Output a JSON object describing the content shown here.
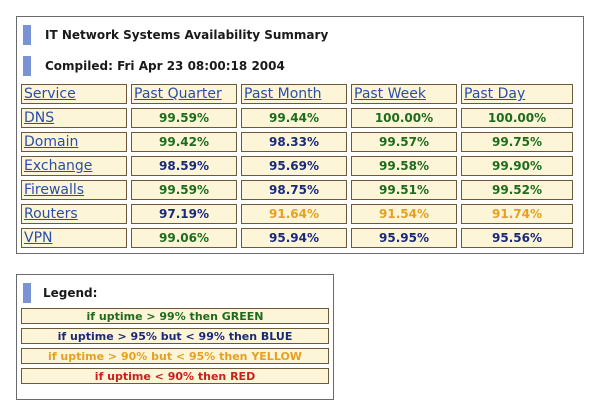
{
  "summary": {
    "title": "IT Network Systems Availability Summary",
    "compiled": "Compiled: Fri Apr 23 08:00:18 2004",
    "columns": [
      "Service",
      "Past Quarter",
      "Past Month",
      "Past Week",
      "Past Day"
    ],
    "rows": [
      {
        "service": "DNS",
        "values": [
          "99.59%",
          "99.44%",
          "100.00%",
          "100.00%"
        ],
        "colors": [
          "#1e6b1e",
          "#1e6b1e",
          "#1e6b1e",
          "#1e6b1e"
        ]
      },
      {
        "service": "Domain",
        "values": [
          "99.42%",
          "98.33%",
          "99.57%",
          "99.75%"
        ],
        "colors": [
          "#1e6b1e",
          "#1a2a7a",
          "#1e6b1e",
          "#1e6b1e"
        ]
      },
      {
        "service": "Exchange",
        "values": [
          "98.59%",
          "95.69%",
          "99.58%",
          "99.90%"
        ],
        "colors": [
          "#1a2a7a",
          "#1a2a7a",
          "#1e6b1e",
          "#1e6b1e"
        ]
      },
      {
        "service": "Firewalls",
        "values": [
          "99.59%",
          "98.75%",
          "99.51%",
          "99.52%"
        ],
        "colors": [
          "#1e6b1e",
          "#1a2a7a",
          "#1e6b1e",
          "#1e6b1e"
        ]
      },
      {
        "service": "Routers",
        "values": [
          "97.19%",
          "91.64%",
          "91.54%",
          "91.74%"
        ],
        "colors": [
          "#1a2a7a",
          "#e6a020",
          "#e6a020",
          "#e6a020"
        ]
      },
      {
        "service": "VPN",
        "values": [
          "99.06%",
          "95.94%",
          "95.95%",
          "95.56%"
        ],
        "colors": [
          "#1e6b1e",
          "#1a2a7a",
          "#1a2a7a",
          "#1a2a7a"
        ]
      }
    ]
  },
  "legend": {
    "title": "Legend:",
    "items": [
      {
        "text": "if uptime > 99% then GREEN",
        "color": "#1e6b1e"
      },
      {
        "text": "if uptime > 95% but < 99% then BLUE",
        "color": "#1a2a7a"
      },
      {
        "text": "if uptime > 90% but < 95% then YELLOW",
        "color": "#e6a020"
      },
      {
        "text": "if uptime < 90% then RED",
        "color": "#c8201a"
      }
    ]
  },
  "colors": {
    "accent": "#7a93d4",
    "cell_bg": "#fdf5d8",
    "link": "#2a4ea8"
  }
}
